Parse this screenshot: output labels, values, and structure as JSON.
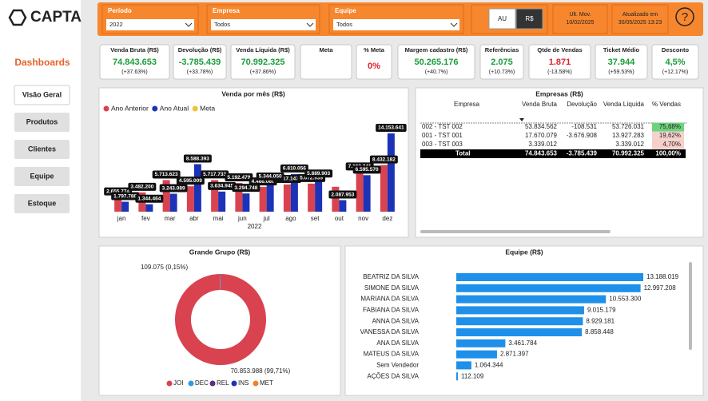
{
  "sidebar": {
    "logo": "CAPTA",
    "section": "Dashboards",
    "nav": [
      "Visão Geral",
      "Produtos",
      "Clientes",
      "Equipe",
      "Estoque"
    ],
    "active": 0
  },
  "filters": [
    {
      "label": "Período",
      "value": "2022"
    },
    {
      "label": "Empresa",
      "value": "Todos"
    },
    {
      "label": "Equipe",
      "value": "Todos"
    }
  ],
  "toggle": {
    "options": [
      "AU",
      "R$"
    ],
    "selected": 1
  },
  "info": [
    {
      "label": "Ult. Mov.",
      "value": "10/02/2025"
    },
    {
      "label": "Atualizado em",
      "value": "30/05/2025 13:23"
    }
  ],
  "help": "?",
  "kpis": [
    {
      "title": "Venda Bruta (R$)",
      "value": "74.843.653",
      "change": "(+37.63%)",
      "color": "#1a9e3a"
    },
    {
      "title": "Devolução (R$)",
      "value": "-3.785.439",
      "change": "(+33.78%)",
      "color": "#1a9e3a"
    },
    {
      "title": "Venda Líquida (R$)",
      "value": "70.992.325",
      "change": "(+37.86%)",
      "color": "#1a9e3a"
    },
    {
      "title": "Meta"
    },
    {
      "title": "% Meta",
      "value": "0%",
      "color": "#e0202a"
    },
    {
      "title": "Margem cadastro (R$)",
      "value": "50.265.176",
      "change": "(+40.7%)",
      "color": "#1a9e3a"
    },
    {
      "title": "Referências",
      "value": "2.075",
      "change": "(+10.73%)",
      "color": "#1a9e3a"
    },
    {
      "title": "Qtde de Vendas",
      "value": "1.871",
      "change": "(-13.58%)",
      "color": "#e0202a"
    },
    {
      "title": "Ticket Médio",
      "value": "37.944",
      "change": "(+59.53%)",
      "color": "#1a9e3a"
    },
    {
      "title": "Desconto",
      "value": "4,5%",
      "change": "(+12.17%)",
      "color": "#1a9e3a"
    }
  ],
  "table": {
    "title": "Empresas (R$)",
    "columns": [
      "Empresa",
      "Venda Bruta",
      "Devolução",
      "Venda Líquida",
      "% Vendas"
    ],
    "rows": [
      [
        "002 - TST 002",
        "53.834.562",
        "-108.531",
        "53.726.031",
        "75,68%"
      ],
      [
        "001 - TST 001",
        "17.670.079",
        "-3.676.908",
        "13.927.283",
        "19,62%"
      ],
      [
        "003 - TST 003",
        "3.339.012",
        null,
        "3.339.012",
        "4,70%"
      ]
    ],
    "total": [
      "Total",
      "74.843.653",
      "-3.785.439",
      "70.992.325",
      "100,00%"
    ],
    "pct_colors": [
      "#6fd27e",
      "#f6d2cd",
      "#f6cfc9"
    ]
  },
  "chart_data": [
    {
      "type": "bar",
      "title": "Venda por mês (R$)",
      "x_label": "2022",
      "categories": [
        "jan",
        "fev",
        "mar",
        "abr",
        "mai",
        "jun",
        "jul",
        "ago",
        "set",
        "out",
        "nov",
        "dez"
      ],
      "series": [
        {
          "name": "Ano Anterior",
          "color": "#d9434f",
          "values": [
            2655774,
            3482200,
            5713623,
            4595009,
            5717733,
            5192479,
            4466069,
            4917147,
            5072939,
            4500000,
            7162241,
            8432182
          ],
          "value_labels": [
            "2.655.774",
            "3.482.200",
            "5.713.623",
            "4.595.009",
            "5.717.733",
            "5.192.479",
            "4.466.069",
            "4.917.147",
            "5.072.939",
            null,
            "7.162.241",
            "8.432.182"
          ]
        },
        {
          "name": "Ano Atual",
          "color": "#1c33b8",
          "values": [
            1797788,
            1344464,
            3243089,
            8588393,
            3634945,
            3294748,
            5344050,
            6810056,
            5889903,
            2087953,
            6595570,
            14153641
          ],
          "value_labels": [
            "1.797.788",
            "1.344.464",
            "3.243.089",
            "8.588.393",
            "3.634.945",
            "3.294.748",
            "5.344.050",
            "6.810.056",
            "5.889.903",
            "2.087.953",
            "6.595.570",
            "14.153.641"
          ]
        },
        {
          "name": "Meta",
          "color": "#f0c23a",
          "values": [
            null,
            null,
            null,
            null,
            null,
            null,
            null,
            null,
            null,
            null,
            null,
            null
          ]
        }
      ]
    },
    {
      "type": "pie",
      "title": "Grande Grupo (R$)",
      "categories": [
        "JOI",
        "DEC",
        "REL",
        "INS",
        "MET"
      ],
      "colors": [
        "#d9434f",
        "#2f9be0",
        "#5a2d82",
        "#1c33b8",
        "#f08030"
      ],
      "values": [
        70853988,
        109075,
        50000,
        30000,
        17000
      ],
      "value_labels": [
        "70.853.988 (99,71%)",
        "109.075 (0,15%)",
        null,
        null,
        null
      ]
    },
    {
      "type": "hbar",
      "title": "Equipe (R$)",
      "color": "#1e90ea",
      "categories": [
        "BEATRIZ DA SILVA",
        "SIMONE DA SILVA",
        "MARIANA DA SILVA",
        "FABIANA DA SILVA",
        "ANNA DA SILVA",
        "VANESSA DA SILVA",
        "ANA DA SILVA",
        "MATEUS DA SILVA",
        "Sem Vendedor",
        "AÇÕES DA SILVA"
      ],
      "values": [
        13188019,
        12997208,
        10553300,
        9015179,
        8929181,
        8858448,
        3461784,
        2871397,
        1064344,
        112109
      ],
      "value_labels": [
        "13.188.019",
        "12.997.208",
        "10.553.300",
        "9.015.179",
        "8.929.181",
        "8.858.448",
        "3.461.784",
        "2.871.397",
        "1.064.344",
        "112.109"
      ]
    }
  ]
}
